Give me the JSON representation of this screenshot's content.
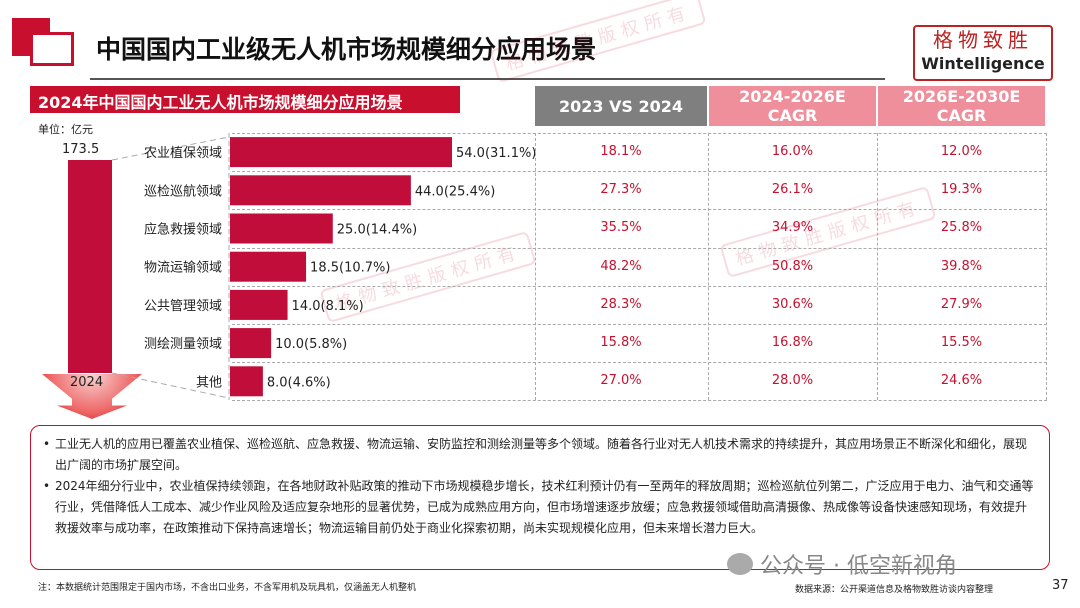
{
  "header": {
    "title": "中国国内工业级无人机市场规模细分应用场景",
    "brand_cn": "格物致胜",
    "brand_en": "Wintelligence"
  },
  "watermark_stamp": "格物致胜版权所有",
  "chart_data": {
    "type": "bar",
    "orientation": "horizontal",
    "title": "2024年中国国内工业无人机市场规模细分应用场景",
    "unit": "单位：亿元",
    "total": {
      "label": "2024",
      "value": 173.5,
      "value_label": "173.5"
    },
    "categories": [
      "农业植保领域",
      "巡检巡航领域",
      "应急救援领域",
      "物流运输领域",
      "公共管理领域",
      "测绘测量领域",
      "其他"
    ],
    "values": [
      54.0,
      44.0,
      25.0,
      18.5,
      14.0,
      10.0,
      8.0
    ],
    "data_labels": [
      "54.0(31.1%)",
      "44.0(25.4%)",
      "25.0(14.4%)",
      "18.5(10.7%)",
      "14.0(8.1%)",
      "10.0(5.8%)",
      "8.0(4.6%)"
    ],
    "bar_color": "#c00d3a"
  },
  "table": {
    "headers": [
      {
        "line1": "2023 VS 2024",
        "line2": "",
        "color": "#7f7f7f"
      },
      {
        "line1": "2024-2026E",
        "line2": "CAGR",
        "color": "#ee8f9b"
      },
      {
        "line1": "2026E-2030E",
        "line2": "CAGR",
        "color": "#ee8f9b"
      }
    ],
    "rows": [
      [
        "18.1%",
        "16.0%",
        "12.0%"
      ],
      [
        "27.3%",
        "26.1%",
        "19.3%"
      ],
      [
        "35.5%",
        "34.9%",
        "25.8%"
      ],
      [
        "48.2%",
        "50.8%",
        "39.8%"
      ],
      [
        "28.3%",
        "30.6%",
        "27.9%"
      ],
      [
        "15.8%",
        "16.8%",
        "15.5%"
      ],
      [
        "27.0%",
        "28.0%",
        "24.6%"
      ]
    ]
  },
  "bullets": [
    "工业无人机的应用已覆盖农业植保、巡检巡航、应急救援、物流运输、安防监控和测绘测量等多个领域。随着各行业对无人机技术需求的持续提升，其应用场景正不断深化和细化，展现出广阔的市场扩展空间。",
    "2024年细分行业中，农业植保持续领跑，在各地财政补贴政策的推动下市场规模稳步增长，技术红利预计仍有一至两年的释放周期；巡检巡航位列第二，广泛应用于电力、油气和交通等行业，凭借降低人工成本、减少作业风险及适应复杂地形的显著优势，已成为成熟应用方向，但市场增速逐步放缓；应急救援领域借助高清摄像、热成像等设备快速感知现场，有效提升救援效率与成功率，在政策推动下保持高速增长；物流运输目前仍处于商业化探索初期，尚未实现规模化应用，但未来增长潜力巨大。"
  ],
  "footer": {
    "note": "注：本数据统计范围限定于国内市场，不含出口业务，不含军用机及玩具机，仅涵盖无人机整机",
    "source": "数据来源：公开渠道信息及格物致胜访谈内容整理",
    "page": "37",
    "wechat": "公众号 · 低空新视角"
  }
}
